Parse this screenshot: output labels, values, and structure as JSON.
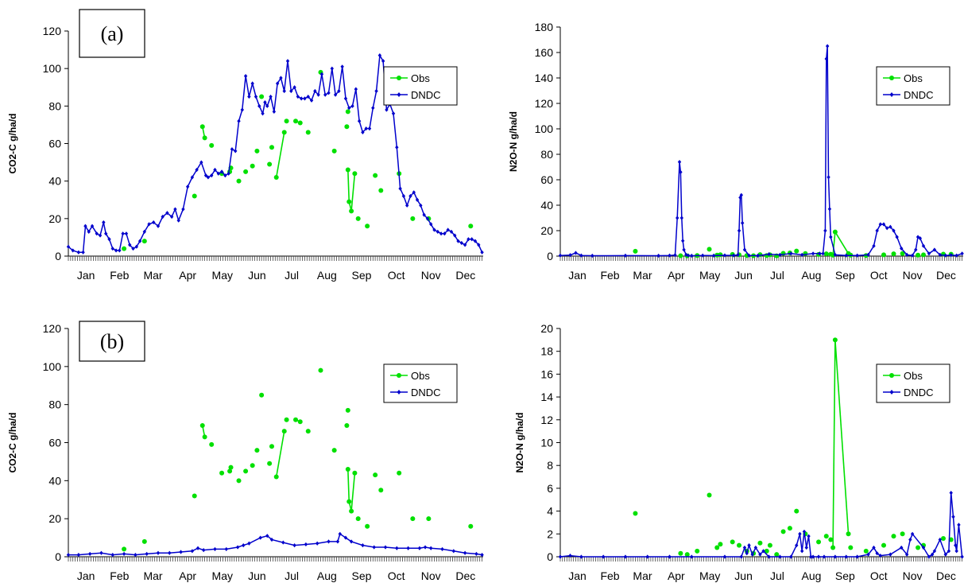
{
  "panels": {
    "a": "(a)",
    "b": "(b)"
  },
  "colors": {
    "obs": "#00e000",
    "dndc": "#0000cc"
  },
  "chart_data": [
    {
      "type": "line",
      "title": "",
      "xlabel": "",
      "ylabel": "CO2-C g/ha/d",
      "categories": [
        "Jan",
        "Feb",
        "Mar",
        "Apr",
        "May",
        "Jun",
        "Jul",
        "Aug",
        "Sep",
        "Oct",
        "Nov",
        "Dec"
      ],
      "ylim": [
        0,
        120
      ],
      "yticks": [
        0,
        20,
        40,
        60,
        80,
        100,
        120
      ],
      "legend": [
        "Obs",
        "DNDC"
      ],
      "legend_position": "top-right",
      "series": [
        {
          "name": "Obs",
          "x": [
            50,
            68,
            112,
            119,
            121,
            127,
            136,
            143,
            144,
            151,
            157,
            163,
            167,
            171,
            178,
            180,
            184,
            191,
            193,
            201,
            205,
            212,
            223,
            235,
            246,
            247,
            247,
            248,
            250,
            253,
            256,
            264,
            271,
            276,
            292,
            304,
            318,
            355
          ],
          "values": [
            4,
            8,
            32,
            69,
            63,
            59,
            44,
            45,
            47,
            40,
            45,
            48,
            56,
            85,
            49,
            58,
            42,
            66,
            72,
            72,
            71,
            66,
            98,
            56,
            69,
            77,
            46,
            29,
            24,
            44,
            20,
            16,
            43,
            35,
            44,
            20,
            20,
            16
          ],
          "links": [
            [
              3,
              4
            ],
            [
              19,
              20
            ],
            [
              16,
              17
            ],
            [
              26,
              27
            ],
            [
              27,
              28
            ],
            [
              28,
              29
            ]
          ]
        },
        {
          "name": "DNDC",
          "x": [
            1,
            5,
            10,
            14,
            16,
            19,
            22,
            26,
            29,
            32,
            34,
            37,
            40,
            43,
            46,
            49,
            52,
            55,
            58,
            61,
            64,
            68,
            72,
            76,
            80,
            84,
            88,
            92,
            95,
            98,
            102,
            106,
            110,
            114,
            118,
            122,
            124,
            127,
            130,
            133,
            136,
            139,
            142,
            145,
            148,
            151,
            154,
            157,
            160,
            163,
            166,
            169,
            172,
            174,
            176,
            179,
            182,
            185,
            188,
            191,
            194,
            197,
            200,
            203,
            206,
            209,
            212,
            215,
            218,
            221,
            224,
            227,
            230,
            233,
            236,
            239,
            242,
            245,
            248,
            251,
            254,
            257,
            260,
            263,
            266,
            269,
            272,
            275,
            278,
            281,
            284,
            287,
            290,
            293,
            296,
            299,
            302,
            305,
            308,
            311,
            314,
            317,
            320,
            323,
            326,
            329,
            332,
            335,
            338,
            341,
            344,
            347,
            350,
            353,
            356,
            359,
            362,
            365
          ],
          "values": [
            5,
            3,
            2,
            2,
            16,
            13,
            16,
            12,
            11,
            18,
            12,
            9,
            4,
            3,
            3,
            12,
            12,
            6,
            4,
            5,
            8,
            13,
            17,
            18,
            16,
            21,
            23,
            21,
            25,
            19,
            25,
            37,
            42,
            46,
            50,
            43,
            42,
            43,
            46,
            44,
            45,
            43,
            44,
            57,
            56,
            72,
            78,
            96,
            85,
            92,
            85,
            80,
            76,
            82,
            80,
            85,
            77,
            92,
            95,
            88,
            104,
            88,
            90,
            85,
            84,
            84,
            85,
            83,
            88,
            86,
            97,
            86,
            87,
            100,
            86,
            88,
            101,
            84,
            79,
            80,
            89,
            72,
            66,
            68,
            68,
            79,
            88,
            107,
            104,
            78,
            81,
            76,
            58,
            36,
            32,
            27,
            32,
            34,
            30,
            27,
            22,
            20,
            17,
            14,
            13,
            12,
            12,
            14,
            13,
            11,
            8,
            7,
            6,
            9,
            9,
            8,
            6,
            2
          ]
        }
      ]
    },
    {
      "type": "line",
      "title": "",
      "xlabel": "",
      "ylabel": "N2O-N g/ha/d",
      "categories": [
        "Jan",
        "Feb",
        "Mar",
        "Apr",
        "May",
        "Jun",
        "Jul",
        "Aug",
        "Sep",
        "Oct",
        "Nov",
        "Dec"
      ],
      "ylim": [
        0,
        180
      ],
      "yticks": [
        0,
        20,
        40,
        60,
        80,
        100,
        120,
        140,
        160,
        180
      ],
      "legend": [
        "Obs",
        "DNDC"
      ],
      "legend_position": "top-right",
      "series": [
        {
          "name": "Obs",
          "x": [
            69,
            110,
            116,
            125,
            136,
            143,
            146,
            157,
            163,
            170,
            176,
            182,
            188,
            191,
            197,
            203,
            209,
            215,
            223,
            235,
            242,
            246,
            248,
            250,
            262,
            264,
            278,
            294,
            303,
            311,
            325,
            330,
            348,
            355
          ],
          "values": [
            3.8,
            0.3,
            0.2,
            0.5,
            5.4,
            0.8,
            1.1,
            1.3,
            1.0,
            0.5,
            0.3,
            1.2,
            0.5,
            1.0,
            0.2,
            2.2,
            2.5,
            4.0,
            2.0,
            1.3,
            1.8,
            1.5,
            0.8,
            19,
            2,
            0.8,
            0.5,
            1.0,
            1.8,
            2.0,
            0.8,
            1.0,
            1.6,
            1.5
          ],
          "links": [
            [
              22,
              23
            ],
            [
              23,
              24
            ]
          ]
        },
        {
          "name": "DNDC",
          "x": [
            1,
            10,
            15,
            20,
            30,
            60,
            90,
            100,
            105,
            107,
            109,
            110,
            111,
            112,
            113,
            115,
            117,
            120,
            130,
            140,
            150,
            158,
            162,
            163,
            164,
            165,
            166,
            168,
            172,
            180,
            190,
            200,
            210,
            220,
            230,
            236,
            239,
            241,
            242,
            243,
            244,
            245,
            246,
            250,
            260,
            270,
            280,
            285,
            288,
            291,
            294,
            297,
            300,
            303,
            306,
            310,
            315,
            320,
            323,
            325,
            327,
            330,
            335,
            340,
            345,
            350,
            355,
            360,
            365
          ],
          "values": [
            0.5,
            0.8,
            2.5,
            0.5,
            0.3,
            0.4,
            0.3,
            0.5,
            0.8,
            30,
            74,
            66,
            30,
            12,
            5,
            1,
            0.5,
            0.3,
            0.5,
            0.4,
            0.6,
            0.5,
            1,
            20,
            46,
            48,
            26,
            5,
            0.5,
            0.4,
            1.5,
            1,
            2,
            1,
            2,
            2,
            2,
            20,
            155,
            165,
            62,
            37,
            15,
            1,
            0.5,
            0.5,
            1,
            8,
            20,
            25,
            25,
            22,
            23,
            20,
            15,
            6,
            1,
            0.5,
            5,
            15,
            14,
            8,
            2,
            5,
            1,
            0.5,
            0.8,
            0.5,
            2
          ]
        }
      ]
    },
    {
      "type": "line",
      "title": "",
      "xlabel": "",
      "ylabel": "CO2-C g/ha/d",
      "categories": [
        "Jan",
        "Feb",
        "Mar",
        "Apr",
        "May",
        "Jun",
        "Jul",
        "Aug",
        "Sep",
        "Oct",
        "Nov",
        "Dec"
      ],
      "ylim": [
        0,
        120
      ],
      "yticks": [
        0,
        20,
        40,
        60,
        80,
        100,
        120
      ],
      "legend": [
        "Obs",
        "DNDC"
      ],
      "legend_position": "top-right",
      "series": [
        {
          "name": "Obs",
          "x": [
            50,
            68,
            112,
            119,
            121,
            127,
            136,
            143,
            144,
            151,
            157,
            163,
            167,
            171,
            178,
            180,
            184,
            191,
            193,
            201,
            205,
            212,
            223,
            235,
            246,
            247,
            247,
            248,
            250,
            253,
            256,
            264,
            271,
            276,
            292,
            304,
            318,
            355
          ],
          "values": [
            4,
            8,
            32,
            69,
            63,
            59,
            44,
            45,
            47,
            40,
            45,
            48,
            56,
            85,
            49,
            58,
            42,
            66,
            72,
            72,
            71,
            66,
            98,
            56,
            69,
            77,
            46,
            29,
            24,
            44,
            20,
            16,
            43,
            35,
            44,
            20,
            20,
            16
          ],
          "links": [
            [
              3,
              4
            ],
            [
              19,
              20
            ],
            [
              16,
              17
            ],
            [
              26,
              27
            ],
            [
              27,
              28
            ],
            [
              28,
              29
            ]
          ]
        },
        {
          "name": "DNDC",
          "x": [
            1,
            10,
            20,
            30,
            40,
            50,
            60,
            70,
            80,
            90,
            100,
            110,
            115,
            120,
            130,
            140,
            150,
            155,
            160,
            170,
            176,
            180,
            190,
            200,
            210,
            220,
            230,
            238,
            240,
            245,
            250,
            260,
            270,
            280,
            290,
            300,
            310,
            315,
            320,
            330,
            340,
            350,
            360,
            365
          ],
          "values": [
            1,
            1,
            1.5,
            2,
            1,
            1.5,
            1,
            1.5,
            2,
            2,
            2.5,
            3,
            4.5,
            3.5,
            4,
            4,
            5,
            6,
            7,
            10,
            11,
            9,
            7.5,
            6,
            6.5,
            7,
            8,
            8,
            12,
            10,
            8,
            6,
            5,
            5,
            4.5,
            4.5,
            4.5,
            5,
            4.5,
            4,
            3,
            2,
            1.5,
            1
          ]
        }
      ]
    },
    {
      "type": "line",
      "title": "",
      "xlabel": "",
      "ylabel": "N2O-N g/ha/d",
      "categories": [
        "Jan",
        "Feb",
        "Mar",
        "Apr",
        "May",
        "Jun",
        "Jul",
        "Aug",
        "Sep",
        "Oct",
        "Nov",
        "Dec"
      ],
      "ylim": [
        0,
        20
      ],
      "yticks": [
        0,
        2,
        4,
        6,
        8,
        10,
        12,
        14,
        16,
        18,
        20
      ],
      "legend": [
        "Obs",
        "DNDC"
      ],
      "legend_position": "top-right",
      "series": [
        {
          "name": "Obs",
          "x": [
            69,
            110,
            116,
            125,
            136,
            143,
            146,
            157,
            163,
            170,
            176,
            182,
            188,
            191,
            197,
            203,
            209,
            215,
            223,
            235,
            242,
            246,
            248,
            250,
            262,
            264,
            278,
            294,
            303,
            311,
            325,
            330,
            348,
            355
          ],
          "values": [
            3.8,
            0.3,
            0.2,
            0.5,
            5.4,
            0.8,
            1.1,
            1.3,
            1.0,
            0.5,
            0.3,
            1.2,
            0.5,
            1.0,
            0.2,
            2.2,
            2.5,
            4.0,
            2.0,
            1.3,
            1.8,
            1.5,
            0.8,
            19,
            2,
            0.8,
            0.5,
            1.0,
            1.8,
            2.0,
            0.8,
            1.0,
            1.6,
            1.5
          ],
          "links": [
            [
              22,
              23
            ],
            [
              23,
              24
            ]
          ]
        },
        {
          "name": "DNDC",
          "x": [
            1,
            10,
            20,
            40,
            60,
            80,
            100,
            120,
            150,
            165,
            168,
            170,
            172,
            175,
            178,
            182,
            185,
            190,
            200,
            210,
            215,
            218,
            220,
            222,
            224,
            226,
            228,
            230,
            235,
            240,
            250,
            260,
            270,
            280,
            285,
            288,
            291,
            300,
            310,
            315,
            318,
            320,
            330,
            335,
            338,
            340,
            345,
            350,
            353,
            355,
            357,
            359,
            360,
            362,
            365
          ],
          "values": [
            0,
            0.1,
            0,
            0,
            0,
            0,
            0,
            0,
            0,
            0,
            0.8,
            0.3,
            1.0,
            0.2,
            0.8,
            0.2,
            0.5,
            0,
            0,
            0,
            1.0,
            2.0,
            0.5,
            2.2,
            0.8,
            1.8,
            0,
            0,
            0,
            0,
            0,
            0,
            0,
            0.2,
            0.8,
            0.3,
            0.1,
            0.2,
            0.8,
            0.2,
            1.5,
            2.0,
            0.8,
            0,
            0.2,
            0.5,
            1.5,
            0.2,
            0.5,
            5.6,
            3.5,
            1,
            0.5,
            2.8,
            0
          ]
        }
      ]
    }
  ]
}
